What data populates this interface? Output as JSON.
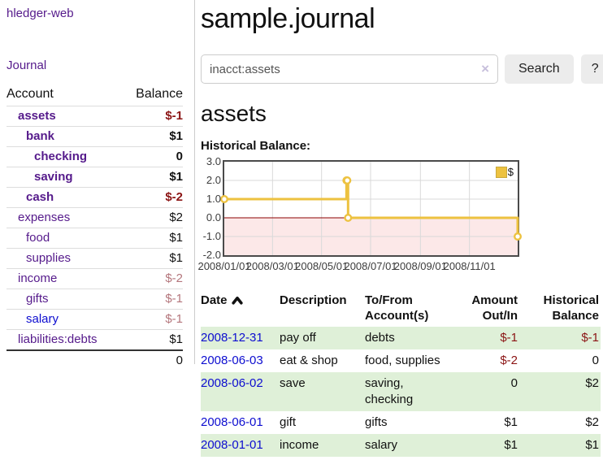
{
  "app": {
    "title": "hledger-web"
  },
  "sidebar": {
    "journal_link": "Journal",
    "accounts_table": {
      "headers": {
        "account": "Account",
        "balance": "Balance"
      },
      "rows": [
        {
          "name": "assets",
          "depth": 1,
          "bold": true,
          "link_color": "purple",
          "balance": "$-1",
          "balance_style": "neg-strong"
        },
        {
          "name": "bank",
          "depth": 2,
          "bold": true,
          "link_color": "purple",
          "balance": "$1",
          "balance_style": "normal"
        },
        {
          "name": "checking",
          "depth": 3,
          "bold": true,
          "link_color": "purple",
          "balance": "0",
          "balance_style": "normal"
        },
        {
          "name": "saving",
          "depth": 3,
          "bold": true,
          "link_color": "purple",
          "balance": "$1",
          "balance_style": "normal"
        },
        {
          "name": "cash",
          "depth": 2,
          "bold": true,
          "link_color": "purple",
          "balance": "$-2",
          "balance_style": "neg-strong"
        },
        {
          "name": "expenses",
          "depth": 1,
          "bold": false,
          "link_color": "purple",
          "balance": "$2",
          "balance_style": "normal"
        },
        {
          "name": "food",
          "depth": 2,
          "bold": false,
          "link_color": "purple",
          "balance": "$1",
          "balance_style": "normal"
        },
        {
          "name": "supplies",
          "depth": 2,
          "bold": false,
          "link_color": "purple",
          "balance": "$1",
          "balance_style": "normal"
        },
        {
          "name": "income",
          "depth": 1,
          "bold": false,
          "link_color": "purple",
          "balance": "$-2",
          "balance_style": "neg-soft"
        },
        {
          "name": "gifts",
          "depth": 2,
          "bold": false,
          "link_color": "purple",
          "balance": "$-1",
          "balance_style": "neg-soft"
        },
        {
          "name": "salary",
          "depth": 2,
          "bold": false,
          "link_color": "blue",
          "balance": "$-1",
          "balance_style": "neg-soft"
        },
        {
          "name": "liabilities:debts",
          "depth": 1,
          "bold": false,
          "link_color": "purple",
          "balance": "$1",
          "balance_style": "normal"
        }
      ],
      "total": "0"
    }
  },
  "main": {
    "title": "sample.journal",
    "search": {
      "value": "inacct:assets",
      "clear_icon": "×",
      "button_label": "Search",
      "help_label": "?"
    },
    "account_heading": "assets",
    "chart_label": "Historical Balance:",
    "register_table": {
      "headers": {
        "date": "Date",
        "description": "Description",
        "accounts": "To/From Account(s)",
        "amount": "Amount Out/In",
        "balance": "Historical Balance"
      },
      "rows": [
        {
          "date": "2008-12-31",
          "description": "pay off",
          "accounts": "debts",
          "amount": "$-1",
          "amount_negative": true,
          "balance": "$-1",
          "balance_negative": true,
          "shaded": true
        },
        {
          "date": "2008-06-03",
          "description": "eat & shop",
          "accounts": "food, supplies",
          "amount": "$-2",
          "amount_negative": true,
          "balance": "0",
          "balance_negative": false,
          "shaded": false
        },
        {
          "date": "2008-06-02",
          "description": "save",
          "accounts": "saving, checking",
          "amount": "0",
          "amount_negative": false,
          "balance": "$2",
          "balance_negative": false,
          "shaded": true
        },
        {
          "date": "2008-06-01",
          "description": "gift",
          "accounts": "gifts",
          "amount": "$1",
          "amount_negative": false,
          "balance": "$2",
          "balance_negative": false,
          "shaded": false
        },
        {
          "date": "2008-01-01",
          "description": "income",
          "accounts": "salary",
          "amount": "$1",
          "amount_negative": false,
          "balance": "$1",
          "balance_negative": false,
          "shaded": true
        }
      ]
    }
  },
  "chart_data": {
    "type": "line",
    "step": true,
    "title": "Historical Balance",
    "series": [
      {
        "name": "$",
        "points": [
          {
            "date": "2008-01-01",
            "value": 1
          },
          {
            "date": "2008-06-01",
            "value": 2
          },
          {
            "date": "2008-06-02",
            "value": 2
          },
          {
            "date": "2008-06-03",
            "value": 0
          },
          {
            "date": "2008-12-31",
            "value": -1
          }
        ]
      }
    ],
    "x_ticks": [
      {
        "date": "2008-01-01",
        "label": "2008/01/01"
      },
      {
        "date": "2008-03-01",
        "label": "2008/03/01"
      },
      {
        "date": "2008-05-01",
        "label": "2008/05/01"
      },
      {
        "date": "2008-07-01",
        "label": "2008/07/01"
      },
      {
        "date": "2008-09-01",
        "label": "2008/09/01"
      },
      {
        "date": "2008-11-01",
        "label": "2008/11/01"
      }
    ],
    "y_ticks": [
      "3.0",
      "2.0",
      "1.0",
      "0.0",
      "-1.0",
      "-2.0"
    ],
    "ylim": [
      -2,
      3
    ],
    "xlim": [
      "2008-01-01",
      "2008-12-31"
    ],
    "legend": {
      "label": "$",
      "position": "top-right"
    },
    "grid": true
  },
  "colors": {
    "link_purple": "#551a8b",
    "link_blue": "#0d0dd0",
    "negative": "#8b1414",
    "negative_soft": "#b4767c",
    "row_shade": "#dff0d8",
    "button_bg": "#ececec",
    "divider": "#cccccc",
    "border_light": "#dddddd",
    "clear_icon": "#c7bfdc",
    "chart_gold": "#edc240",
    "chart_negative_bg": "#fce8e8",
    "chart_zero_line": "#8b0000",
    "chart_grid": "#d9d9d9",
    "chart_border": "#4a4a4a"
  }
}
